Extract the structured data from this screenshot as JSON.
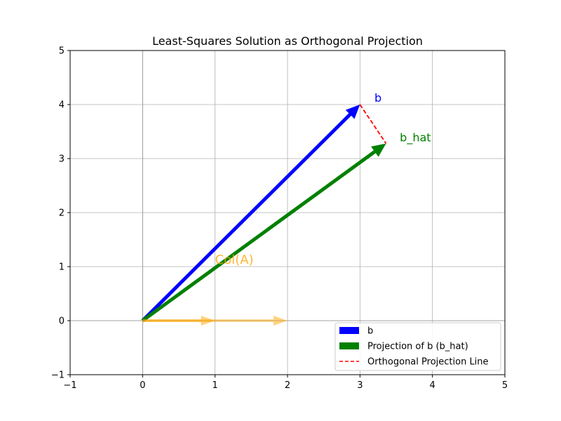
{
  "chart_data": {
    "type": "vector-plot",
    "title": "Least-Squares Solution as Orthogonal Projection",
    "xlabel": "",
    "ylabel": "",
    "xlim": [
      -1,
      5
    ],
    "ylim": [
      -1,
      5
    ],
    "xticks": [
      -1,
      0,
      1,
      2,
      3,
      4,
      5
    ],
    "yticks": [
      -1,
      0,
      1,
      2,
      3,
      4,
      5
    ],
    "xtick_labels": [
      "−1",
      "0",
      "1",
      "2",
      "3",
      "4",
      "5"
    ],
    "ytick_labels": [
      "−1",
      "0",
      "1",
      "2",
      "3",
      "4",
      "5"
    ],
    "grid": true,
    "vectors": [
      {
        "id": "b",
        "from": [
          0,
          0
        ],
        "to": [
          3,
          4
        ],
        "color": "#0000ff",
        "label": "b",
        "label_at": [
          3.2,
          4.05
        ]
      },
      {
        "id": "b_hat",
        "from": [
          0,
          0
        ],
        "to": [
          3.36,
          3.28
        ],
        "color": "#008000",
        "label": "b_hat",
        "label_at": [
          3.55,
          3.32
        ]
      },
      {
        "id": "col-a-1",
        "from": [
          0,
          0
        ],
        "to": [
          1,
          0
        ],
        "color": "#ffa500"
      },
      {
        "id": "col-a-2",
        "from": [
          0,
          0
        ],
        "to": [
          2,
          0
        ],
        "color": "#ffa500"
      }
    ],
    "projection_line": {
      "from": [
        3,
        4
      ],
      "to": [
        3.36,
        3.28
      ],
      "color": "#ff0000"
    },
    "annotations": [
      {
        "text": "Col(A)",
        "at": [
          1,
          1.05
        ],
        "color": "#ffa500"
      }
    ],
    "legend": {
      "placement": "lower-right",
      "entries": [
        {
          "label": "b",
          "kind": "patch",
          "color": "#0000ff"
        },
        {
          "label": "Projection of b (b_hat)",
          "kind": "patch",
          "color": "#008000"
        },
        {
          "label": "Orthogonal Projection Line",
          "kind": "dashed",
          "color": "#ff0000"
        }
      ]
    }
  }
}
